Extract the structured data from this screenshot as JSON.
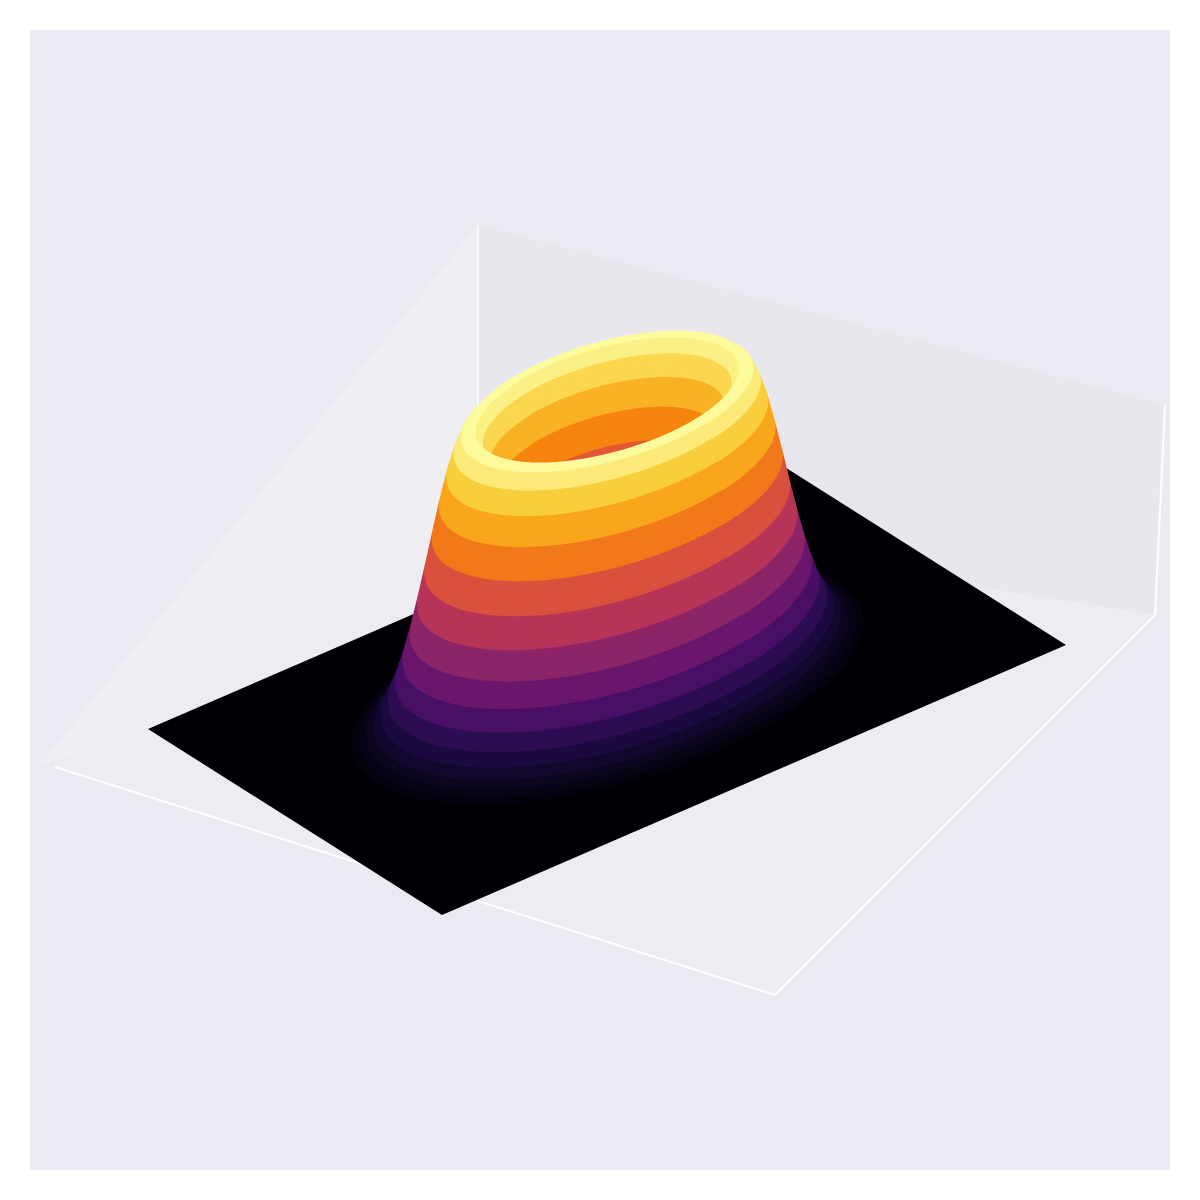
{
  "chart_data": {
    "type": "surface3d",
    "title": "",
    "xlabel": "",
    "ylabel": "",
    "zlabel": "",
    "function": "ring",
    "x_range": [
      -3,
      3
    ],
    "y_range": [
      -3,
      3
    ],
    "z_range": [
      0,
      1
    ],
    "ring_radius": 1.2,
    "ring_width": 0.5,
    "peak_value": 1.0,
    "colormap": "inferno",
    "grid": false,
    "ticks": false,
    "axes_background": "#eaeaf2",
    "pane_colors": [
      "#eeeef3",
      "#e7e7ed",
      "#ececf1"
    ]
  }
}
